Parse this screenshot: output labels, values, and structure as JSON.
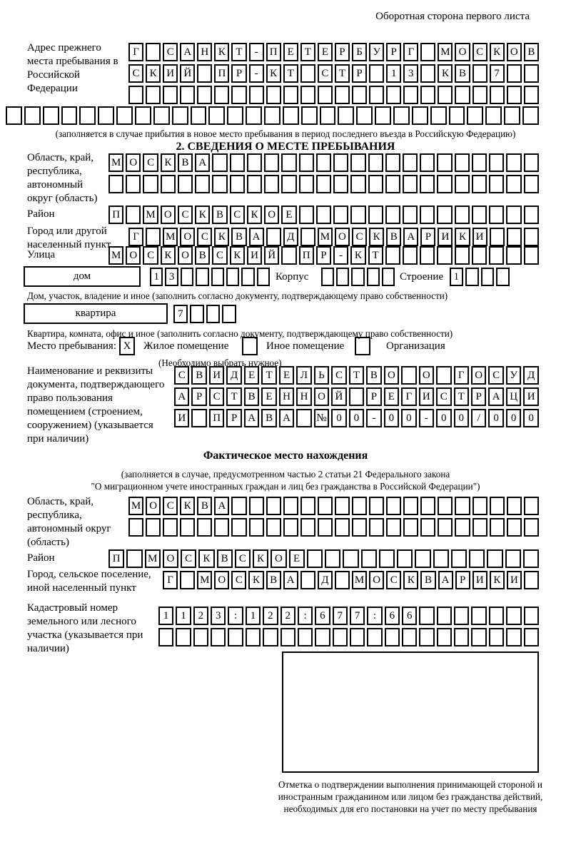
{
  "page": {
    "side_note": "Оборотная сторона первого листа"
  },
  "prev_address": {
    "label": "Адрес прежнего места пребывания в Российской Федерации",
    "row1": {
      "text": "Г САНКТ-ПЕТЕРБУРГ МОСКОВ",
      "len": 24
    },
    "row2": {
      "text": "СКИЙ ПР-КТ СТР 13 КВ 7",
      "len": 24
    },
    "row3": {
      "text": "",
      "len": 24
    },
    "row4": {
      "text": "",
      "len": 29
    },
    "note": "(заполняется в случае прибытия в новое место пребывания в период последнего въезда в Российскую Федерацию)"
  },
  "section2": {
    "title": "2. СВЕДЕНИЯ О МЕСТЕ ПРЕБЫВАНИЯ",
    "oblast": {
      "label": "Область, край, республика, автономный округ (область)",
      "row1": {
        "text": "МОСКВА",
        "len": 25
      },
      "row2": {
        "text": "",
        "len": 25
      }
    },
    "raion": {
      "label": "Район",
      "row": {
        "text": "П МОСКВСКОЕ",
        "len": 25
      }
    },
    "gorod": {
      "label": "Город или другой населенный пункт",
      "row": {
        "text": "Г МОСКВА Д МОСКВАРИКИ",
        "len": 24
      }
    },
    "ulitsa": {
      "label": "Улица",
      "row": {
        "text": "МОСКОВСКИЙ ПР-КТ",
        "len": 25
      }
    },
    "dom": {
      "box_label": "дом",
      "cells": {
        "text": "13",
        "len": 8
      },
      "korpus_label": "Корпус",
      "korpus_cells": {
        "text": "",
        "len": 5
      },
      "stroenie_label": "Строение",
      "stroenie_cells": {
        "text": "1",
        "len": 4
      },
      "note": "Дом, участок, владение и иное (заполнить согласно документу, подтверждающему право собственности)"
    },
    "kvartira": {
      "box_label": "квартира",
      "cells": {
        "text": "7",
        "len": 4
      },
      "note": "Квартира, комната, офис и иное (заполнить согласно документу, подтверждающему право собственности)"
    },
    "mesto": {
      "label": "Место пребывания:",
      "options": [
        {
          "label": "Жилое помещение",
          "mark": "X"
        },
        {
          "label": "Иное помещение",
          "mark": ""
        },
        {
          "label": "Организация",
          "mark": ""
        }
      ],
      "note": "(Необходимо выбрать нужное)"
    },
    "doc": {
      "label": "Наименование и реквизиты документа, подтверждающего право пользования помещением (строением, сооружением) (указывается при наличии)",
      "row1": {
        "text": "СВИДЕТЕЛЬСТВО О ГОСУД",
        "len": 21
      },
      "row2": {
        "text": "АРСТВЕННОЙ РЕГИСТРАЦИ",
        "len": 21
      },
      "row3": {
        "text": "И ПРАВА №00-00-00/000",
        "len": 21
      }
    }
  },
  "factual": {
    "title": "Фактическое место нахождения",
    "note1": "(заполняется в случае, предусмотренном частью 2 статьи 21 Федерального закона",
    "note2": "\"О миграционном учете иностранных граждан и лиц без гражданства в Российской Федерации\")",
    "oblast": {
      "label": "Область, край, республика, автономный округ (область)",
      "row1": {
        "text": "МОСКВА",
        "len": 24
      },
      "row2": {
        "text": "",
        "len": 24
      }
    },
    "raion": {
      "label": "Район",
      "row": {
        "text": "П МОСКВСКОЕ",
        "len": 24
      }
    },
    "gorod": {
      "label": "Город, сельское поселение, иной населенный пункт",
      "row": {
        "text": "Г МОСКВА Д МОСКВАРИКИ",
        "len": 22
      }
    },
    "kadastr": {
      "label": "Кадастровый номер земельного или лесного участка (указывается при наличии)",
      "row1": {
        "text": "1123:122:677:66",
        "len": 22
      },
      "row2": {
        "text": "",
        "len": 22
      }
    },
    "stamp_note": "Отметка о подтверждении выполнения принимающей стороной и иностранным гражданином или лицом без гражданства действий, необходимых для его постановки на учет по месту пребывания"
  }
}
